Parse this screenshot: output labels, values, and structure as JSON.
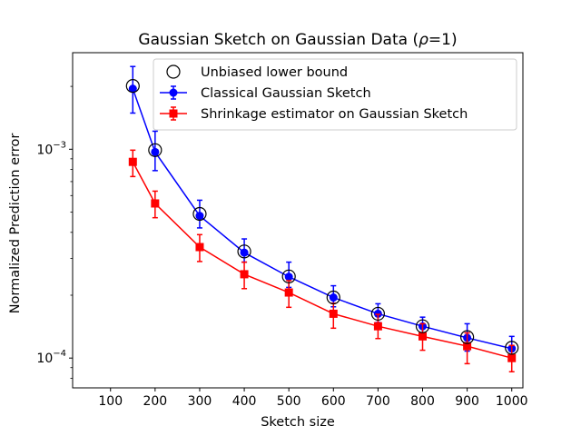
{
  "chart_data": {
    "type": "line",
    "title": "Gaussian Sketch on Gaussian Data (",
    "title_rho": "ρ",
    "title_suffix": "=1)",
    "xlabel": "Sketch size",
    "ylabel": "Normalized Prediction error",
    "x_ticks": [
      "100",
      "200",
      "300",
      "400",
      "500",
      "600",
      "700",
      "800",
      "900",
      "1000"
    ],
    "y_ticks": [
      {
        "value": 0.001,
        "base": "10",
        "exp": "−3"
      },
      {
        "value": 0.0001,
        "base": "10",
        "exp": "−4"
      }
    ],
    "y_scale": "log",
    "xlim": [
      15,
      1025
    ],
    "ylim": [
      7.2e-05,
      0.0029
    ],
    "legend_position": "top-right",
    "x": [
      150,
      200,
      300,
      400,
      500,
      600,
      700,
      800,
      900,
      1000
    ],
    "series": [
      {
        "name": "Unbiased lower bound",
        "style": "open-circle",
        "color": "#000000",
        "values": [
          0.00201,
          0.00099,
          0.00049,
          0.000324,
          0.000246,
          0.000195,
          0.000163,
          0.000142,
          0.000126,
          0.000112
        ]
      },
      {
        "name": "Classical Gaussian Sketch",
        "style": "line-circle",
        "color": "#0000ff",
        "values": [
          0.00195,
          0.00097,
          0.00048,
          0.00032,
          0.000245,
          0.000195,
          0.000163,
          0.000142,
          0.000125,
          0.000111
        ],
        "err_low": [
          0.00149,
          0.00079,
          0.00042,
          0.000288,
          0.000218,
          0.000176,
          0.000148,
          0.000131,
          0.000108,
          0.000101
        ],
        "err_high": [
          0.00249,
          0.00122,
          0.00057,
          0.000372,
          0.000288,
          0.000222,
          0.000182,
          0.000157,
          0.000146,
          0.000127
        ]
      },
      {
        "name": "Shrinkage estimator on Gaussian Sketch",
        "style": "line-square",
        "color": "#ff0000",
        "values": [
          0.00087,
          0.00055,
          0.00034,
          0.000252,
          0.000206,
          0.000163,
          0.000142,
          0.000127,
          0.000114,
          0.0001
        ],
        "err_low": [
          0.00074,
          0.00047,
          0.00029,
          0.000215,
          0.000175,
          0.000139,
          0.000124,
          0.000109,
          9.4e-05,
          8.6e-05
        ],
        "err_high": [
          0.00099,
          0.00063,
          0.00039,
          0.000288,
          0.000235,
          0.000183,
          0.000162,
          0.000146,
          0.000132,
          0.000115
        ]
      }
    ]
  }
}
